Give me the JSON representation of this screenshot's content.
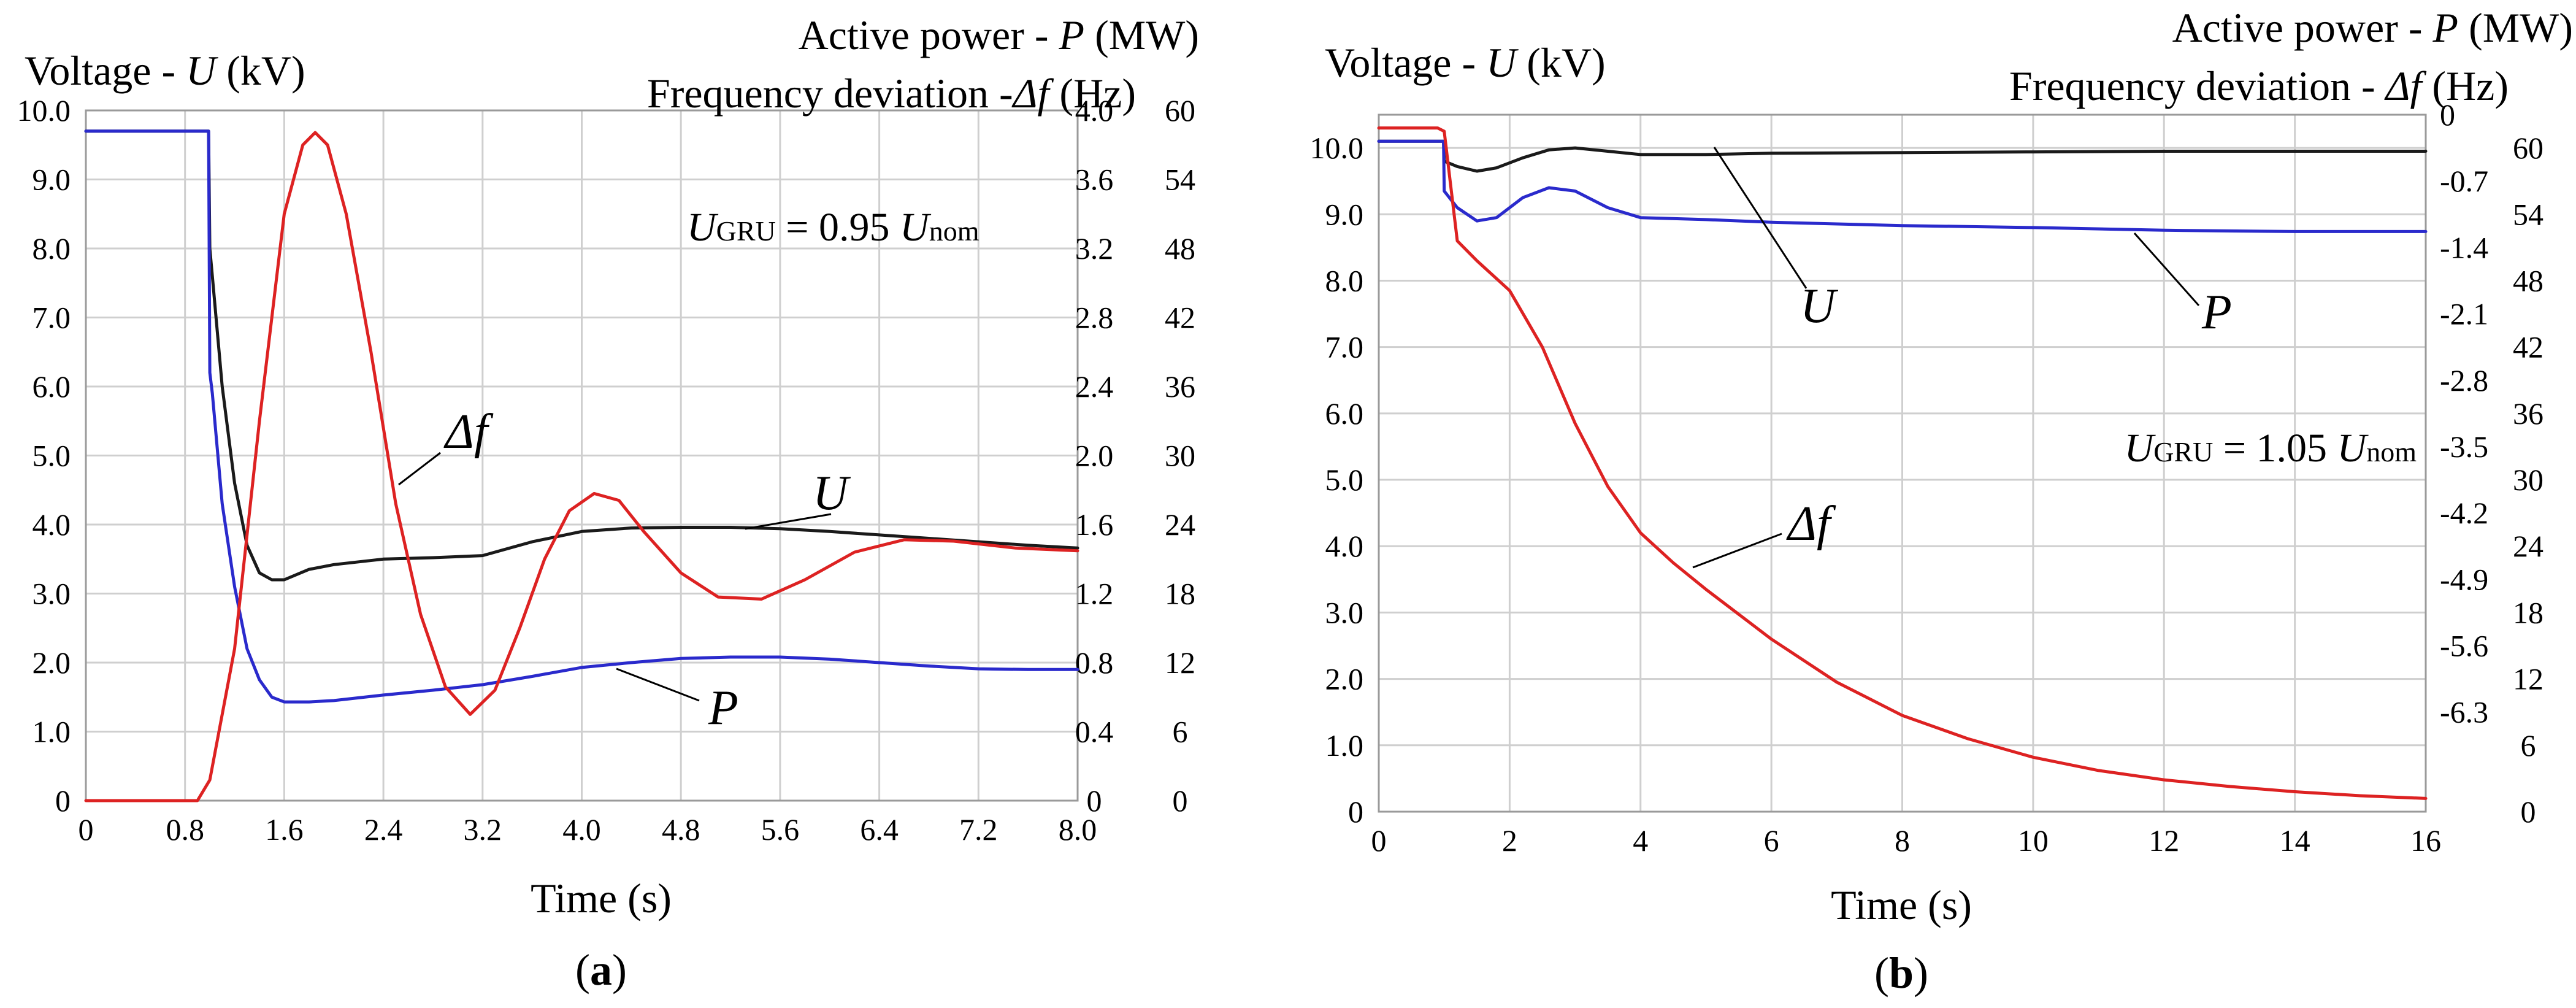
{
  "colors": {
    "U": "#1a1a1a",
    "P": "#2a2acc",
    "df": "#dd2222",
    "grid": "#cfcfcf"
  },
  "chart_data": [
    {
      "type": "line",
      "panel": "(a)",
      "panel_letter": "a",
      "xlabel": "Time (s)",
      "ylabel_left": {
        "prefix": "Voltage - ",
        "symbol": "U",
        "suffix": " (kV)"
      },
      "ylabel_right_top": {
        "prefix": "Active power - ",
        "symbol": "P",
        "suffix": " (MW)"
      },
      "ylabel_right_bottom": {
        "prefix": "Frequency deviation -",
        "symbol": "Δf",
        "suffix": " (Hz)"
      },
      "annotation": {
        "symbol": "U",
        "sub": "GRU",
        "eq": " = 0.95 ",
        "symbol2": "U",
        "sub2": "nom"
      },
      "xlim": [
        0,
        8
      ],
      "xticks": [
        "0",
        "0.8",
        "1.6",
        "2.4",
        "3.2",
        "4.0",
        "4.8",
        "5.6",
        "6.4",
        "7.2",
        "8.0"
      ],
      "ylim_left": [
        0,
        10
      ],
      "yticks_left": [
        "0",
        "1.0",
        "2.0",
        "3.0",
        "4.0",
        "5.0",
        "6.0",
        "7.0",
        "8.0",
        "9.0",
        "10.0"
      ],
      "ylim_right_inner": [
        0,
        4.0
      ],
      "yticks_right_inner": [
        "0",
        "0.4",
        "0.8",
        "1.2",
        "1.6",
        "2.0",
        "2.4",
        "2.8",
        "3.2",
        "3.6",
        "4.0"
      ],
      "ylim_right_outer": [
        0,
        60
      ],
      "yticks_right_outer": [
        "0",
        "6",
        "12",
        "18",
        "24",
        "30",
        "36",
        "42",
        "48",
        "54",
        "60"
      ],
      "series": [
        {
          "name": "U",
          "label": "U",
          "color_key": "U",
          "axis": "left",
          "x": [
            0,
            0.99,
            1.0,
            1.02,
            1.1,
            1.2,
            1.3,
            1.4,
            1.5,
            1.6,
            1.8,
            2.0,
            2.4,
            2.8,
            3.2,
            3.6,
            4.0,
            4.4,
            4.8,
            5.2,
            5.6,
            6.0,
            6.4,
            6.8,
            7.2,
            7.6,
            8.0
          ],
          "y": [
            9.7,
            9.7,
            8.0,
            7.6,
            6.0,
            4.6,
            3.7,
            3.3,
            3.2,
            3.2,
            3.35,
            3.42,
            3.5,
            3.52,
            3.55,
            3.75,
            3.9,
            3.95,
            3.96,
            3.96,
            3.94,
            3.9,
            3.85,
            3.8,
            3.75,
            3.7,
            3.66
          ]
        },
        {
          "name": "P",
          "label": "P",
          "color_key": "P",
          "axis": "left",
          "x": [
            0,
            0.99,
            1.0,
            1.02,
            1.1,
            1.2,
            1.3,
            1.4,
            1.5,
            1.6,
            1.8,
            2.0,
            2.4,
            2.8,
            3.2,
            3.6,
            4.0,
            4.4,
            4.8,
            5.2,
            5.6,
            6.0,
            6.4,
            6.8,
            7.2,
            7.6,
            8.0
          ],
          "y": [
            9.7,
            9.7,
            6.2,
            5.9,
            4.3,
            3.1,
            2.2,
            1.75,
            1.5,
            1.43,
            1.43,
            1.45,
            1.53,
            1.6,
            1.68,
            1.8,
            1.93,
            2.0,
            2.06,
            2.08,
            2.08,
            2.05,
            2.0,
            1.95,
            1.91,
            1.9,
            1.9
          ]
        },
        {
          "name": "Δf",
          "label": "Δf",
          "color_key": "df",
          "axis": "left",
          "x": [
            0,
            0.9,
            1.0,
            1.2,
            1.4,
            1.6,
            1.75,
            1.85,
            1.95,
            2.1,
            2.3,
            2.5,
            2.7,
            2.9,
            3.1,
            3.3,
            3.5,
            3.7,
            3.9,
            4.1,
            4.3,
            4.5,
            4.8,
            5.1,
            5.45,
            5.8,
            6.2,
            6.6,
            7.0,
            7.5,
            8.0
          ],
          "y": [
            0,
            0,
            0.3,
            2.2,
            5.5,
            8.5,
            9.5,
            9.68,
            9.5,
            8.5,
            6.5,
            4.3,
            2.7,
            1.65,
            1.25,
            1.6,
            2.5,
            3.5,
            4.2,
            4.45,
            4.35,
            3.9,
            3.3,
            2.95,
            2.92,
            3.2,
            3.6,
            3.78,
            3.76,
            3.66,
            3.62
          ]
        }
      ]
    },
    {
      "type": "line",
      "panel": "(b)",
      "panel_letter": "b",
      "xlabel": "Time (s)",
      "ylabel_left": {
        "prefix": "Voltage - ",
        "symbol": "U",
        "suffix": " (kV)"
      },
      "ylabel_right_top": {
        "prefix": "Active power - ",
        "symbol": "P",
        "suffix": " (MW)"
      },
      "ylabel_right_bottom": {
        "prefix": "Frequency deviation - ",
        "symbol": "Δf",
        "suffix": " (Hz)"
      },
      "annotation": {
        "symbol": "U",
        "sub": "GRU",
        "eq": " = 1.05 ",
        "symbol2": "U",
        "sub2": "nom"
      },
      "xlim": [
        0,
        16
      ],
      "xticks": [
        "0",
        "2",
        "4",
        "6",
        "8",
        "10",
        "12",
        "14",
        "16"
      ],
      "ylim_left": [
        0,
        10.5
      ],
      "yticks_left": [
        "0",
        "1.0",
        "2.0",
        "3.0",
        "4.0",
        "5.0",
        "6.0",
        "7.0",
        "8.0",
        "9.0",
        "10.0"
      ],
      "ylim_right_inner": [
        -7.35,
        0
      ],
      "yticks_right_inner": [
        "0",
        "-0.7",
        "-1.4",
        "-2.1",
        "-2.8",
        "-3.5",
        "-4.2",
        "-4.9",
        "-5.6",
        "-6.3"
      ],
      "ylim_right_outer": [
        0,
        63
      ],
      "yticks_right_outer": [
        "0",
        "6",
        "12",
        "18",
        "24",
        "30",
        "36",
        "42",
        "48",
        "54",
        "60"
      ],
      "series": [
        {
          "name": "U",
          "label": "U",
          "color_key": "U",
          "axis": "left",
          "x": [
            0,
            0.99,
            1.0,
            1.2,
            1.5,
            1.8,
            2.2,
            2.6,
            3.0,
            3.5,
            4.0,
            5.0,
            6.0,
            8.0,
            10.0,
            12.0,
            14.0,
            16.0
          ],
          "y": [
            10.1,
            10.1,
            9.8,
            9.72,
            9.65,
            9.7,
            9.85,
            9.97,
            10.0,
            9.95,
            9.9,
            9.9,
            9.92,
            9.93,
            9.94,
            9.95,
            9.95,
            9.95
          ]
        },
        {
          "name": "P",
          "label": "P",
          "color_key": "P",
          "axis": "left",
          "x": [
            0,
            0.99,
            1.0,
            1.2,
            1.5,
            1.8,
            2.2,
            2.6,
            3.0,
            3.5,
            4.0,
            5.0,
            6.0,
            8.0,
            10.0,
            12.0,
            14.0,
            16.0
          ],
          "y": [
            10.1,
            10.1,
            9.35,
            9.1,
            8.9,
            8.95,
            9.25,
            9.4,
            9.35,
            9.1,
            8.95,
            8.92,
            8.88,
            8.83,
            8.8,
            8.76,
            8.74,
            8.74
          ]
        },
        {
          "name": "Δf",
          "label": "Δf",
          "color_key": "df",
          "axis": "left",
          "x": [
            0,
            0.9,
            1.0,
            1.2,
            1.5,
            2.0,
            2.5,
            3.0,
            3.5,
            4.0,
            4.5,
            5.0,
            6.0,
            7.0,
            8.0,
            9.0,
            10.0,
            11.0,
            12.0,
            13.0,
            14.0,
            15.0,
            16.0
          ],
          "y": [
            10.3,
            10.3,
            10.25,
            8.6,
            8.3,
            7.85,
            7.0,
            5.85,
            4.9,
            4.2,
            3.75,
            3.35,
            2.6,
            1.95,
            1.45,
            1.1,
            0.82,
            0.62,
            0.48,
            0.38,
            0.3,
            0.24,
            0.2
          ]
        }
      ]
    }
  ]
}
